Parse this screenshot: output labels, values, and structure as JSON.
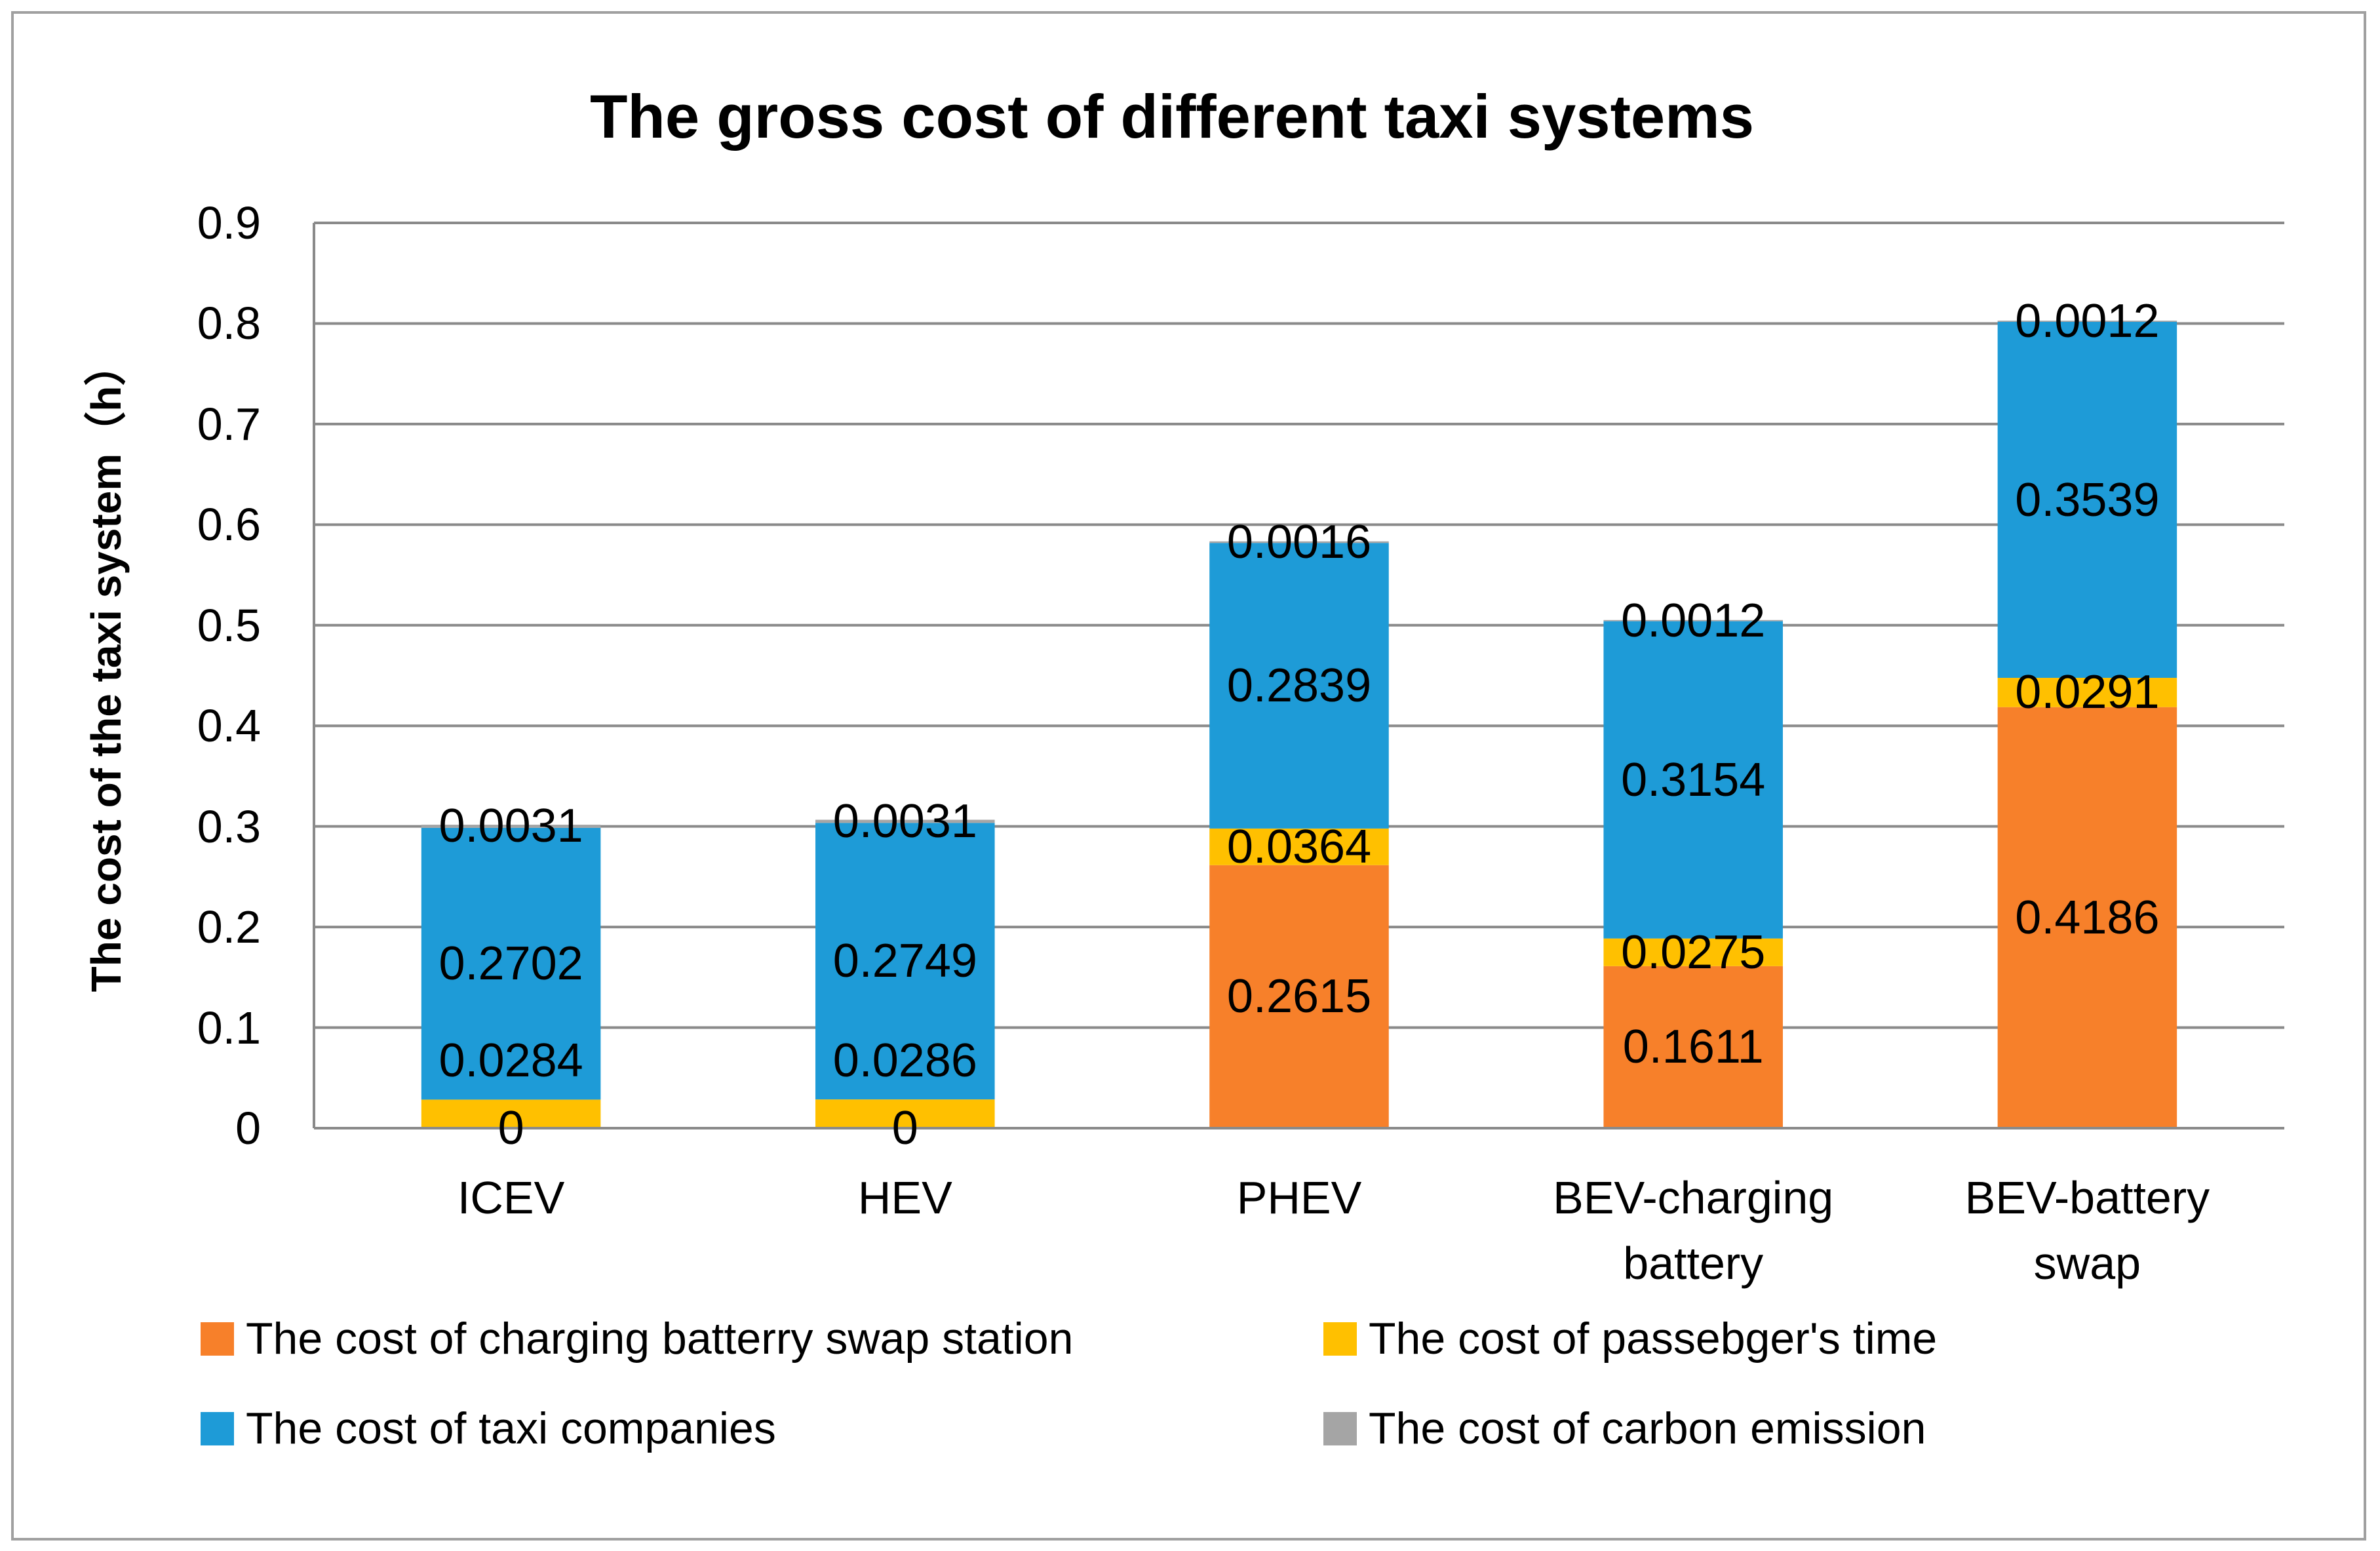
{
  "chart_data": {
    "type": "bar",
    "stacked": true,
    "title": "The gross cost of different taxi systems",
    "ylabel": "The cost of the taxi system（h）",
    "ylim": [
      0,
      0.9
    ],
    "yticks": [
      0,
      0.1,
      0.2,
      0.3,
      0.4,
      0.5,
      0.6,
      0.7,
      0.8,
      0.9
    ],
    "grid": true,
    "legend_position": "bottom",
    "categories": [
      "ICEV",
      "HEV",
      "PHEV",
      "BEV-charging battery",
      "BEV-battery swap"
    ],
    "series": [
      {
        "name": "The cost of charging batterry swap station",
        "color": "#F7802A",
        "values": [
          0,
          0,
          0.2615,
          0.1611,
          0.4186
        ]
      },
      {
        "name": "The cost of passebger's time",
        "color": "#FFC000",
        "values": [
          0.0284,
          0.0286,
          0.0364,
          0.0275,
          0.0291
        ]
      },
      {
        "name": "The cost of taxi companies",
        "color": "#1E9BD7",
        "values": [
          0.2702,
          0.2749,
          0.2839,
          0.3154,
          0.3539
        ]
      },
      {
        "name": "The cost of carbon emission",
        "color": "#A5A5A5",
        "values": [
          0.0031,
          0.0031,
          0.0016,
          0.0012,
          0.0012
        ]
      }
    ]
  }
}
